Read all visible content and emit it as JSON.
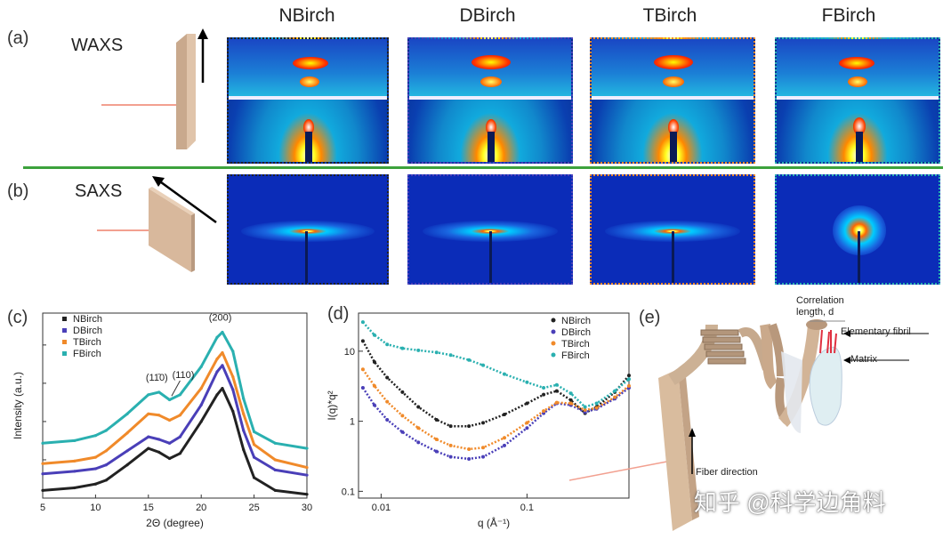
{
  "panels": {
    "a": "(a)",
    "b": "(b)",
    "c": "(c)",
    "d": "(d)",
    "e": "(e)"
  },
  "columns": [
    "NBirch",
    "DBirch",
    "TBirch",
    "FBirch"
  ],
  "column_colors": [
    "#222222",
    "#4a3fb8",
    "#f08a2a",
    "#2ab0b0"
  ],
  "modes": {
    "waxs": "WAXS",
    "saxs": "SAXS"
  },
  "schematic": {
    "correlation": "Correlation",
    "length": "length, d",
    "elementary_fibril": "Elementary fibril",
    "matrix": "Matrix",
    "fiber_direction": "Fiber direction"
  },
  "watermark": "知乎 @科学边角料",
  "chart_data": [
    {
      "type": "line",
      "panel": "c",
      "xlabel": "2Θ (degree)",
      "ylabel": "Intensity (a.u.)",
      "xlim": [
        5,
        30
      ],
      "xticks": [
        5,
        10,
        15,
        20,
        25,
        30
      ],
      "annotations": [
        "(11̄0)",
        "(110)",
        "(200)"
      ],
      "annotation_x": [
        15.8,
        18.3,
        21.8
      ],
      "series": [
        {
          "name": "NBirch",
          "color": "#222222",
          "x": [
            5,
            8,
            10,
            11,
            13,
            15,
            16,
            17,
            18,
            20,
            21.5,
            22,
            23,
            24,
            25,
            27,
            30
          ],
          "y": [
            0.6,
            0.8,
            1.1,
            1.4,
            2.6,
            3.9,
            3.6,
            3.1,
            3.5,
            6.0,
            8.1,
            8.6,
            6.8,
            3.8,
            1.6,
            0.6,
            0.3
          ]
        },
        {
          "name": "DBirch",
          "color": "#4a3fb8",
          "x": [
            5,
            8,
            10,
            11,
            13,
            15,
            16,
            17,
            18,
            20,
            21.5,
            22,
            23,
            24,
            25,
            27,
            30
          ],
          "y": [
            1.9,
            2.1,
            2.3,
            2.6,
            3.7,
            4.8,
            4.6,
            4.3,
            4.8,
            7.3,
            9.9,
            10.4,
            8.5,
            5.3,
            3.2,
            2.2,
            1.8
          ]
        },
        {
          "name": "TBirch",
          "color": "#f08a2a",
          "x": [
            5,
            8,
            10,
            11,
            13,
            15,
            16,
            17,
            18,
            20,
            21.5,
            22,
            23,
            24,
            25,
            27,
            30
          ],
          "y": [
            2.7,
            2.9,
            3.2,
            3.7,
            5.1,
            6.6,
            6.5,
            6.1,
            6.5,
            8.6,
            10.9,
            11.4,
            9.5,
            6.6,
            4.2,
            3.0,
            2.4
          ]
        },
        {
          "name": "FBirch",
          "color": "#2ab0b0",
          "x": [
            5,
            8,
            10,
            11,
            13,
            15,
            16,
            17,
            18,
            20,
            21.5,
            22,
            23,
            24,
            25,
            27,
            30
          ],
          "y": [
            4.3,
            4.5,
            4.9,
            5.3,
            6.6,
            8.1,
            8.3,
            7.7,
            8.1,
            10.3,
            12.6,
            13.0,
            11.5,
            7.8,
            5.2,
            4.3,
            3.9
          ]
        }
      ]
    },
    {
      "type": "scatter",
      "panel": "d",
      "xlabel": "q (Å⁻¹)",
      "ylabel": "I(q)*q²",
      "xscale": "log",
      "yscale": "log",
      "xlim": [
        0.007,
        0.5
      ],
      "ylim": [
        0.08,
        35
      ],
      "xticks": [
        0.01,
        0.1
      ],
      "yticks": [
        0.1,
        1,
        10
      ],
      "series": [
        {
          "name": "NBirch",
          "color": "#222222",
          "x": [
            0.0075,
            0.009,
            0.011,
            0.014,
            0.018,
            0.024,
            0.03,
            0.04,
            0.05,
            0.07,
            0.1,
            0.13,
            0.16,
            0.2,
            0.25,
            0.3,
            0.4,
            0.5
          ],
          "y": [
            14,
            7,
            4.2,
            2.6,
            1.6,
            1.05,
            0.85,
            0.85,
            0.95,
            1.25,
            1.8,
            2.4,
            2.7,
            2.0,
            1.3,
            1.6,
            2.6,
            4.5
          ]
        },
        {
          "name": "DBirch",
          "color": "#4a3fb8",
          "x": [
            0.0075,
            0.009,
            0.011,
            0.014,
            0.018,
            0.024,
            0.03,
            0.04,
            0.05,
            0.07,
            0.1,
            0.13,
            0.16,
            0.2,
            0.25,
            0.3,
            0.4,
            0.5
          ],
          "y": [
            3.0,
            1.7,
            1.05,
            0.7,
            0.5,
            0.37,
            0.31,
            0.29,
            0.31,
            0.45,
            0.8,
            1.3,
            1.8,
            1.7,
            1.35,
            1.5,
            2.1,
            3.0
          ]
        },
        {
          "name": "TBirch",
          "color": "#f08a2a",
          "x": [
            0.0075,
            0.009,
            0.011,
            0.014,
            0.018,
            0.024,
            0.03,
            0.04,
            0.05,
            0.07,
            0.1,
            0.13,
            0.16,
            0.2,
            0.25,
            0.3,
            0.4,
            0.5
          ],
          "y": [
            5.5,
            3.2,
            1.9,
            1.2,
            0.8,
            0.55,
            0.45,
            0.4,
            0.42,
            0.58,
            0.95,
            1.4,
            1.85,
            1.8,
            1.45,
            1.55,
            2.2,
            3.2
          ]
        },
        {
          "name": "FBirch",
          "color": "#2ab0b0",
          "x": [
            0.0075,
            0.009,
            0.011,
            0.014,
            0.018,
            0.024,
            0.03,
            0.04,
            0.05,
            0.07,
            0.1,
            0.13,
            0.16,
            0.2,
            0.25,
            0.3,
            0.4,
            0.5
          ],
          "y": [
            26,
            17,
            12.5,
            11,
            10.3,
            9.6,
            8.8,
            7.5,
            6.3,
            4.7,
            3.6,
            3.0,
            3.3,
            2.5,
            1.6,
            1.8,
            2.7,
            4.0
          ]
        }
      ]
    }
  ]
}
